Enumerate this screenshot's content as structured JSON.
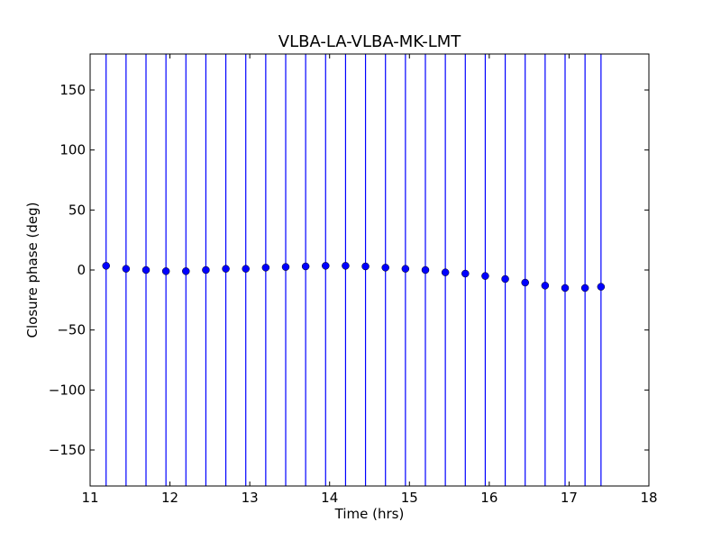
{
  "chart_data": {
    "type": "scatter",
    "title": "VLBA-LA-VLBA-MK-LMT",
    "xlabel": "Time (hrs)",
    "ylabel": "Closure phase (deg)",
    "xlim": [
      11,
      18
    ],
    "ylim": [
      -180,
      180
    ],
    "xticks": [
      11,
      12,
      13,
      14,
      15,
      16,
      17,
      18
    ],
    "yticks": [
      150,
      100,
      50,
      0,
      -50,
      -100,
      -150
    ],
    "ytick_labels": [
      "150",
      "100",
      "50",
      "0",
      "−50",
      "−100",
      "−150"
    ],
    "grid": false,
    "error_bars": "full range (-180 to 180)",
    "series": [
      {
        "color": "#0000ff",
        "marker": "circle",
        "x": [
          11.2,
          11.45,
          11.7,
          11.95,
          12.2,
          12.45,
          12.7,
          12.95,
          13.2,
          13.45,
          13.7,
          13.95,
          14.2,
          14.45,
          14.7,
          14.95,
          15.2,
          15.45,
          15.7,
          15.95,
          16.2,
          16.45,
          16.7,
          16.95,
          17.2,
          17.4
        ],
        "y": [
          3.5,
          1,
          0,
          -1,
          -1,
          0,
          1,
          1,
          2,
          2.5,
          3,
          3.5,
          3.5,
          3,
          2,
          1,
          0,
          -2,
          -3,
          -5,
          -7.5,
          -10.5,
          -13,
          -15,
          -15,
          -14
        ]
      }
    ]
  }
}
